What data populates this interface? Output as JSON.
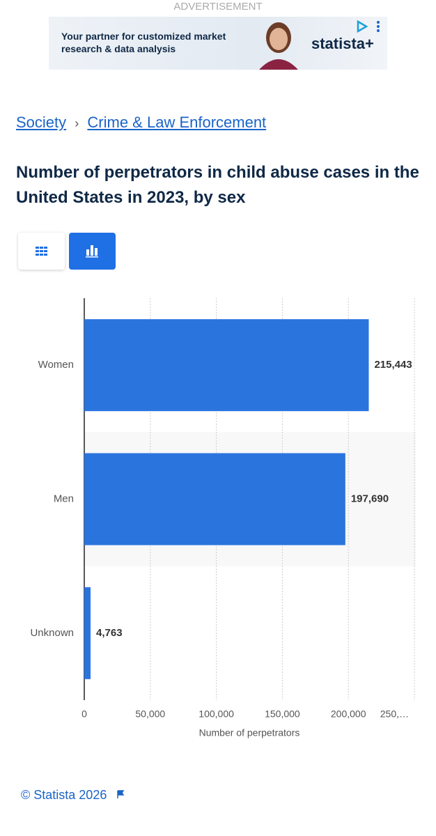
{
  "advertisement": {
    "label": "ADVERTISEMENT",
    "text": "Your partner for customized market research & data analysis",
    "brand": "statista+"
  },
  "breadcrumbs": [
    "Society",
    "Crime & Law Enforcement"
  ],
  "breadcrumb_separator": "›",
  "chart_data": {
    "type": "bar",
    "orientation": "horizontal",
    "title": "Number of perpetrators in child abuse cases in the United States in 2023, by sex",
    "categories": [
      "Women",
      "Men",
      "Unknown"
    ],
    "values": [
      215443,
      197690,
      4763
    ],
    "value_labels": [
      "215,443",
      "197,690",
      "4,763"
    ],
    "color": "#2a74de",
    "xlim": [
      0,
      250000
    ],
    "xticks": [
      0,
      {
        "value": 50000,
        "label": "50,000"
      },
      {
        "value": 100000,
        "label": "100,000"
      },
      {
        "value": 150000,
        "label": "150,000"
      },
      {
        "value": 200000,
        "label": "200,000"
      },
      {
        "value": 250000,
        "label": "250,…"
      }
    ],
    "xlabel": "Number of perpetrators",
    "grid": true
  },
  "footer": "© Statista 2026"
}
